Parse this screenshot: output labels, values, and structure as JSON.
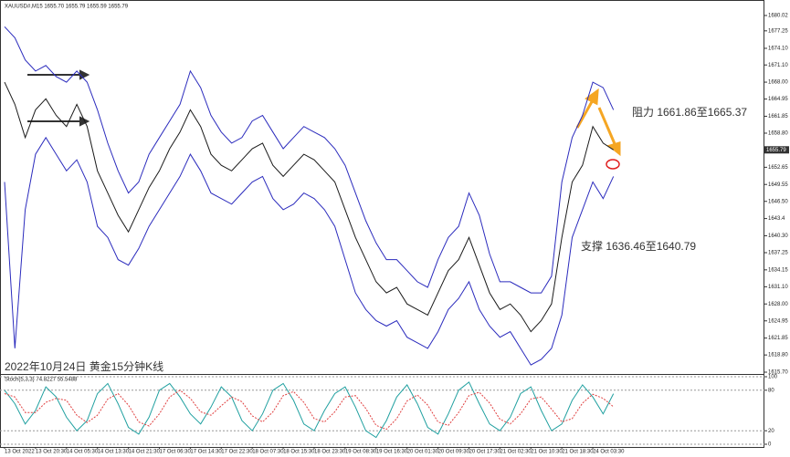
{
  "chart_data": [
    {
      "type": "line",
      "title": "XAUUSD#,M15  1655.70 1655.79 1655.59 1655.79",
      "annotations": [
        "阻力 1661.86至1665.37",
        "支撑 1636.46至1640.79",
        "2022年10月24日 黄金15分钟K线"
      ],
      "categories": [
        "13 Oct 2022",
        null,
        null,
        "13 Oct 20:30",
        null,
        null,
        "14 Oct 05:30",
        null,
        null,
        "14 Oct 13:30",
        null,
        null,
        "14 Oct 21:30",
        null,
        null,
        "17 Oct 06:30",
        null,
        null,
        "17 Oct 14:30",
        null,
        null,
        "17 Oct 22:30",
        null,
        null,
        "18 Oct 07:30",
        null,
        null,
        "18 Oct 15:30",
        null,
        null,
        "18 Oct 23:30",
        null,
        null,
        "19 Oct 08:30",
        null,
        null,
        "19 Oct 16:30",
        null,
        null,
        "20 Oct 01:30",
        null,
        null,
        "20 Oct 09:30",
        null,
        null,
        "20 Oct 17:30",
        null,
        null,
        "21 Oct 02:30",
        null,
        null,
        "21 Oct 10:30",
        null,
        null,
        "21 Oct 18:30",
        null,
        null,
        "24 Oct 03:30",
        null,
        null
      ],
      "series": [
        {
          "color": "#1a1a1a",
          "values": [
            1668,
            1664,
            1658,
            1663,
            1665,
            1662,
            1660,
            1664,
            1660,
            1652,
            1648,
            1644,
            1641,
            1645,
            1649,
            1652,
            1656,
            1659,
            1663,
            1660,
            1655,
            1653,
            1652,
            1654,
            1656,
            1657,
            1653,
            1651,
            1653,
            1655,
            1654,
            1652,
            1650,
            1645,
            1640,
            1636,
            1632,
            1630,
            1631,
            1628,
            1627,
            1626,
            1630,
            1634,
            1636,
            1640,
            1635,
            1630,
            1627,
            1628,
            1626,
            1623,
            1625,
            1628,
            1640,
            1650,
            1653,
            1660,
            1657,
            1655.79
          ]
        },
        {
          "color": "#2b2bbd",
          "values": [
            1678,
            1676,
            1672,
            1670,
            1671,
            1669,
            1668,
            1670,
            1668,
            1663,
            1657,
            1652,
            1648,
            1650,
            1655,
            1658,
            1661,
            1664,
            1670,
            1667,
            1662,
            1659,
            1657,
            1658,
            1661,
            1662,
            1659,
            1656,
            1658,
            1660,
            1659,
            1658,
            1656,
            1653,
            1648,
            1643,
            1639,
            1636,
            1636,
            1634,
            1632,
            1631,
            1636,
            1640,
            1642,
            1648,
            1644,
            1637,
            1632,
            1632,
            1631,
            1630,
            1630,
            1633,
            1650,
            1658,
            1662,
            1668,
            1667,
            1663
          ]
        },
        {
          "color": "#2b2bbd",
          "values": [
            1650,
            1620,
            1645,
            1655,
            1658,
            1655,
            1652,
            1654,
            1650,
            1642,
            1640,
            1636,
            1635,
            1638,
            1642,
            1645,
            1648,
            1651,
            1655,
            1652,
            1648,
            1647,
            1646,
            1648,
            1650,
            1651,
            1647,
            1645,
            1646,
            1648,
            1647,
            1645,
            1642,
            1636,
            1630,
            1627,
            1625,
            1624,
            1625,
            1622,
            1621,
            1620,
            1623,
            1627,
            1629,
            1632,
            1627,
            1624,
            1622,
            1623,
            1620,
            1617,
            1618,
            1620,
            1626,
            1640,
            1645,
            1650,
            1647,
            1651
          ]
        }
      ],
      "ylim": [
        1615.37,
        1682.32
      ],
      "yticks": [
        1680.02,
        1677.25,
        {
          "value": 1674.1,
          "label": "1674.10"
        },
        {
          "value": 1671.1,
          "label": "1671.10"
        },
        {
          "value": 1668,
          "label": "1668.00"
        },
        1664.95,
        1661.85,
        {
          "value": 1658.8,
          "label": "1658.80"
        },
        1652.65,
        1649.55,
        {
          "value": 1646.5,
          "label": "1646.50"
        },
        1643.4,
        {
          "value": 1640.3,
          "label": "1640.30"
        },
        1637.25,
        1634.15,
        {
          "value": 1631.1,
          "label": "1631.10"
        },
        {
          "value": 1628,
          "label": "1628.00"
        },
        1624.95,
        1621.85,
        {
          "value": 1618.8,
          "label": "1618.80"
        },
        {
          "value": 1615.7,
          "label": "1615.70"
        }
      ],
      "grid": false
    },
    {
      "type": "line",
      "title": "Stoch(5,3,3) 74.8227 55.5488",
      "series": [
        {
          "color": "#20a0a0",
          "values": [
            80,
            60,
            30,
            50,
            85,
            70,
            40,
            20,
            35,
            75,
            90,
            60,
            25,
            15,
            40,
            80,
            90,
            70,
            45,
            30,
            55,
            85,
            70,
            35,
            20,
            45,
            80,
            90,
            65,
            30,
            20,
            50,
            75,
            85,
            55,
            20,
            10,
            35,
            70,
            88,
            60,
            25,
            15,
            45,
            80,
            92,
            60,
            30,
            20,
            40,
            75,
            85,
            50,
            20,
            30,
            65,
            88,
            70,
            45,
            74.82
          ]
        },
        {
          "color": "#e04040",
          "values": [
            75,
            70,
            47,
            47,
            62,
            68,
            65,
            43,
            32,
            43,
            67,
            75,
            58,
            33,
            27,
            45,
            70,
            80,
            68,
            48,
            43,
            57,
            70,
            63,
            42,
            33,
            48,
            72,
            78,
            62,
            38,
            33,
            48,
            70,
            72,
            53,
            28,
            22,
            38,
            64,
            73,
            58,
            33,
            28,
            47,
            72,
            77,
            61,
            37,
            30,
            45,
            67,
            70,
            52,
            33,
            38,
            61,
            74,
            68,
            55.55
          ]
        }
      ],
      "ylim": [
        0,
        100
      ],
      "yticks": [
        0,
        20,
        80,
        100
      ],
      "grid": true
    }
  ]
}
